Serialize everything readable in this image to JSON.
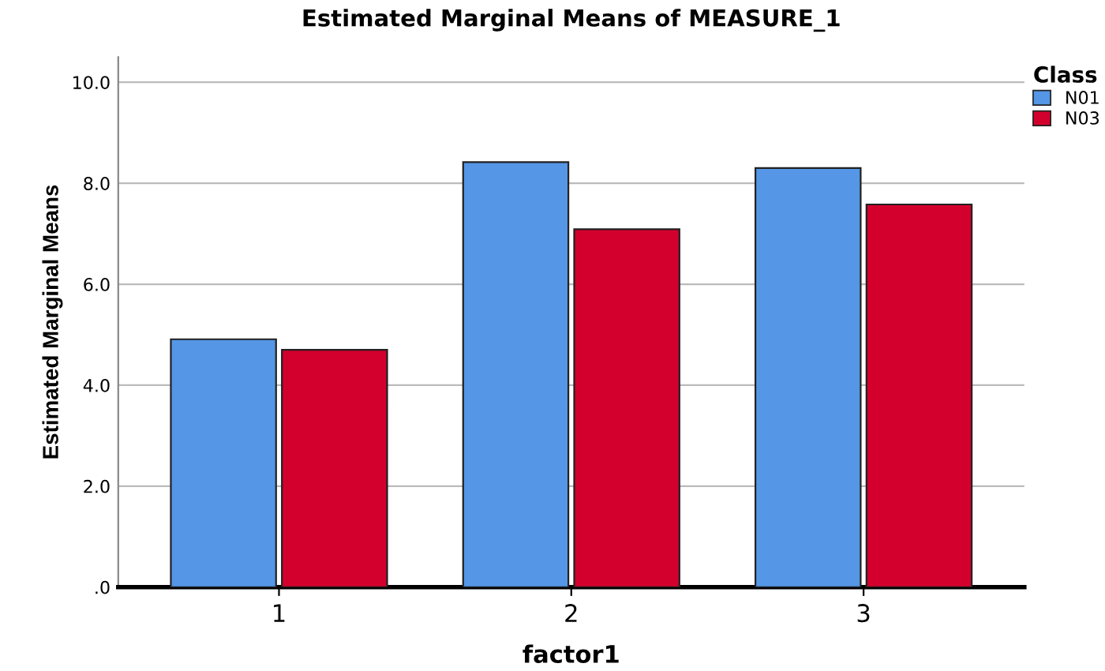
{
  "chart_data": {
    "type": "bar",
    "title": "Estimated Marginal Means of MEASURE_1",
    "xlabel": "factor1",
    "ylabel": "Estimated Marginal Means",
    "categories": [
      "1",
      "2",
      "3"
    ],
    "series": [
      {
        "name": "N01",
        "color": "#5596e6",
        "values": [
          4.91,
          8.42,
          8.3
        ]
      },
      {
        "name": "N03",
        "color": "#d3002d",
        "values": [
          4.7,
          7.09,
          7.58
        ]
      }
    ],
    "legend_title": "Class",
    "legend": "top right",
    "ylim": [
      0,
      10.5
    ],
    "yticks": [
      {
        "value": 0,
        "label": ".0"
      },
      {
        "value": 2,
        "label": "2.0"
      },
      {
        "value": 4,
        "label": "4.0"
      },
      {
        "value": 6,
        "label": "6.0"
      },
      {
        "value": 8,
        "label": "8.0"
      },
      {
        "value": 10,
        "label": "10.0"
      }
    ],
    "grid": "y"
  }
}
